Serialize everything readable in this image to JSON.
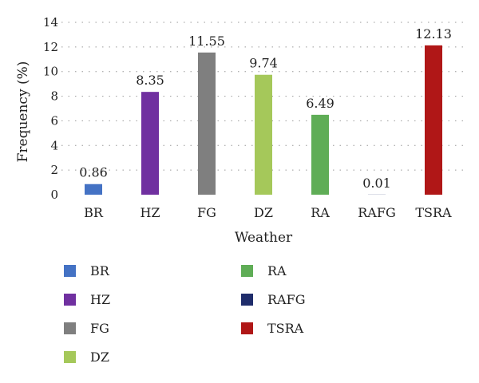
{
  "chart_data": {
    "type": "bar",
    "categories": [
      "BR",
      "HZ",
      "FG",
      "DZ",
      "RA",
      "RAFG",
      "TSRA"
    ],
    "values": [
      0.86,
      8.35,
      11.55,
      9.74,
      6.49,
      0.01,
      12.13
    ],
    "value_labels": [
      "0.86",
      "8.35",
      "11.55",
      "9.74",
      "6.49",
      "0.01",
      "12.13"
    ],
    "colors": [
      "#4472c4",
      "#7030a0",
      "#7f7f7f",
      "#a5c85a",
      "#5fad56",
      "#1f2d6b",
      "#b01717"
    ],
    "xlabel": "Weather",
    "ylabel": "Frequency (%)",
    "ylim": [
      0,
      14
    ],
    "yticks": [
      0,
      2,
      4,
      6,
      8,
      10,
      12,
      14
    ],
    "grid": "dotted horizontal",
    "legend_position": "bottom"
  },
  "legend": [
    {
      "label": "BR",
      "color": "#4472c4"
    },
    {
      "label": "HZ",
      "color": "#7030a0"
    },
    {
      "label": "FG",
      "color": "#7f7f7f"
    },
    {
      "label": "DZ",
      "color": "#a5c85a"
    },
    {
      "label": "RA",
      "color": "#5fad56"
    },
    {
      "label": "RAFG",
      "color": "#1f2d6b"
    },
    {
      "label": "TSRA",
      "color": "#b01717"
    }
  ]
}
